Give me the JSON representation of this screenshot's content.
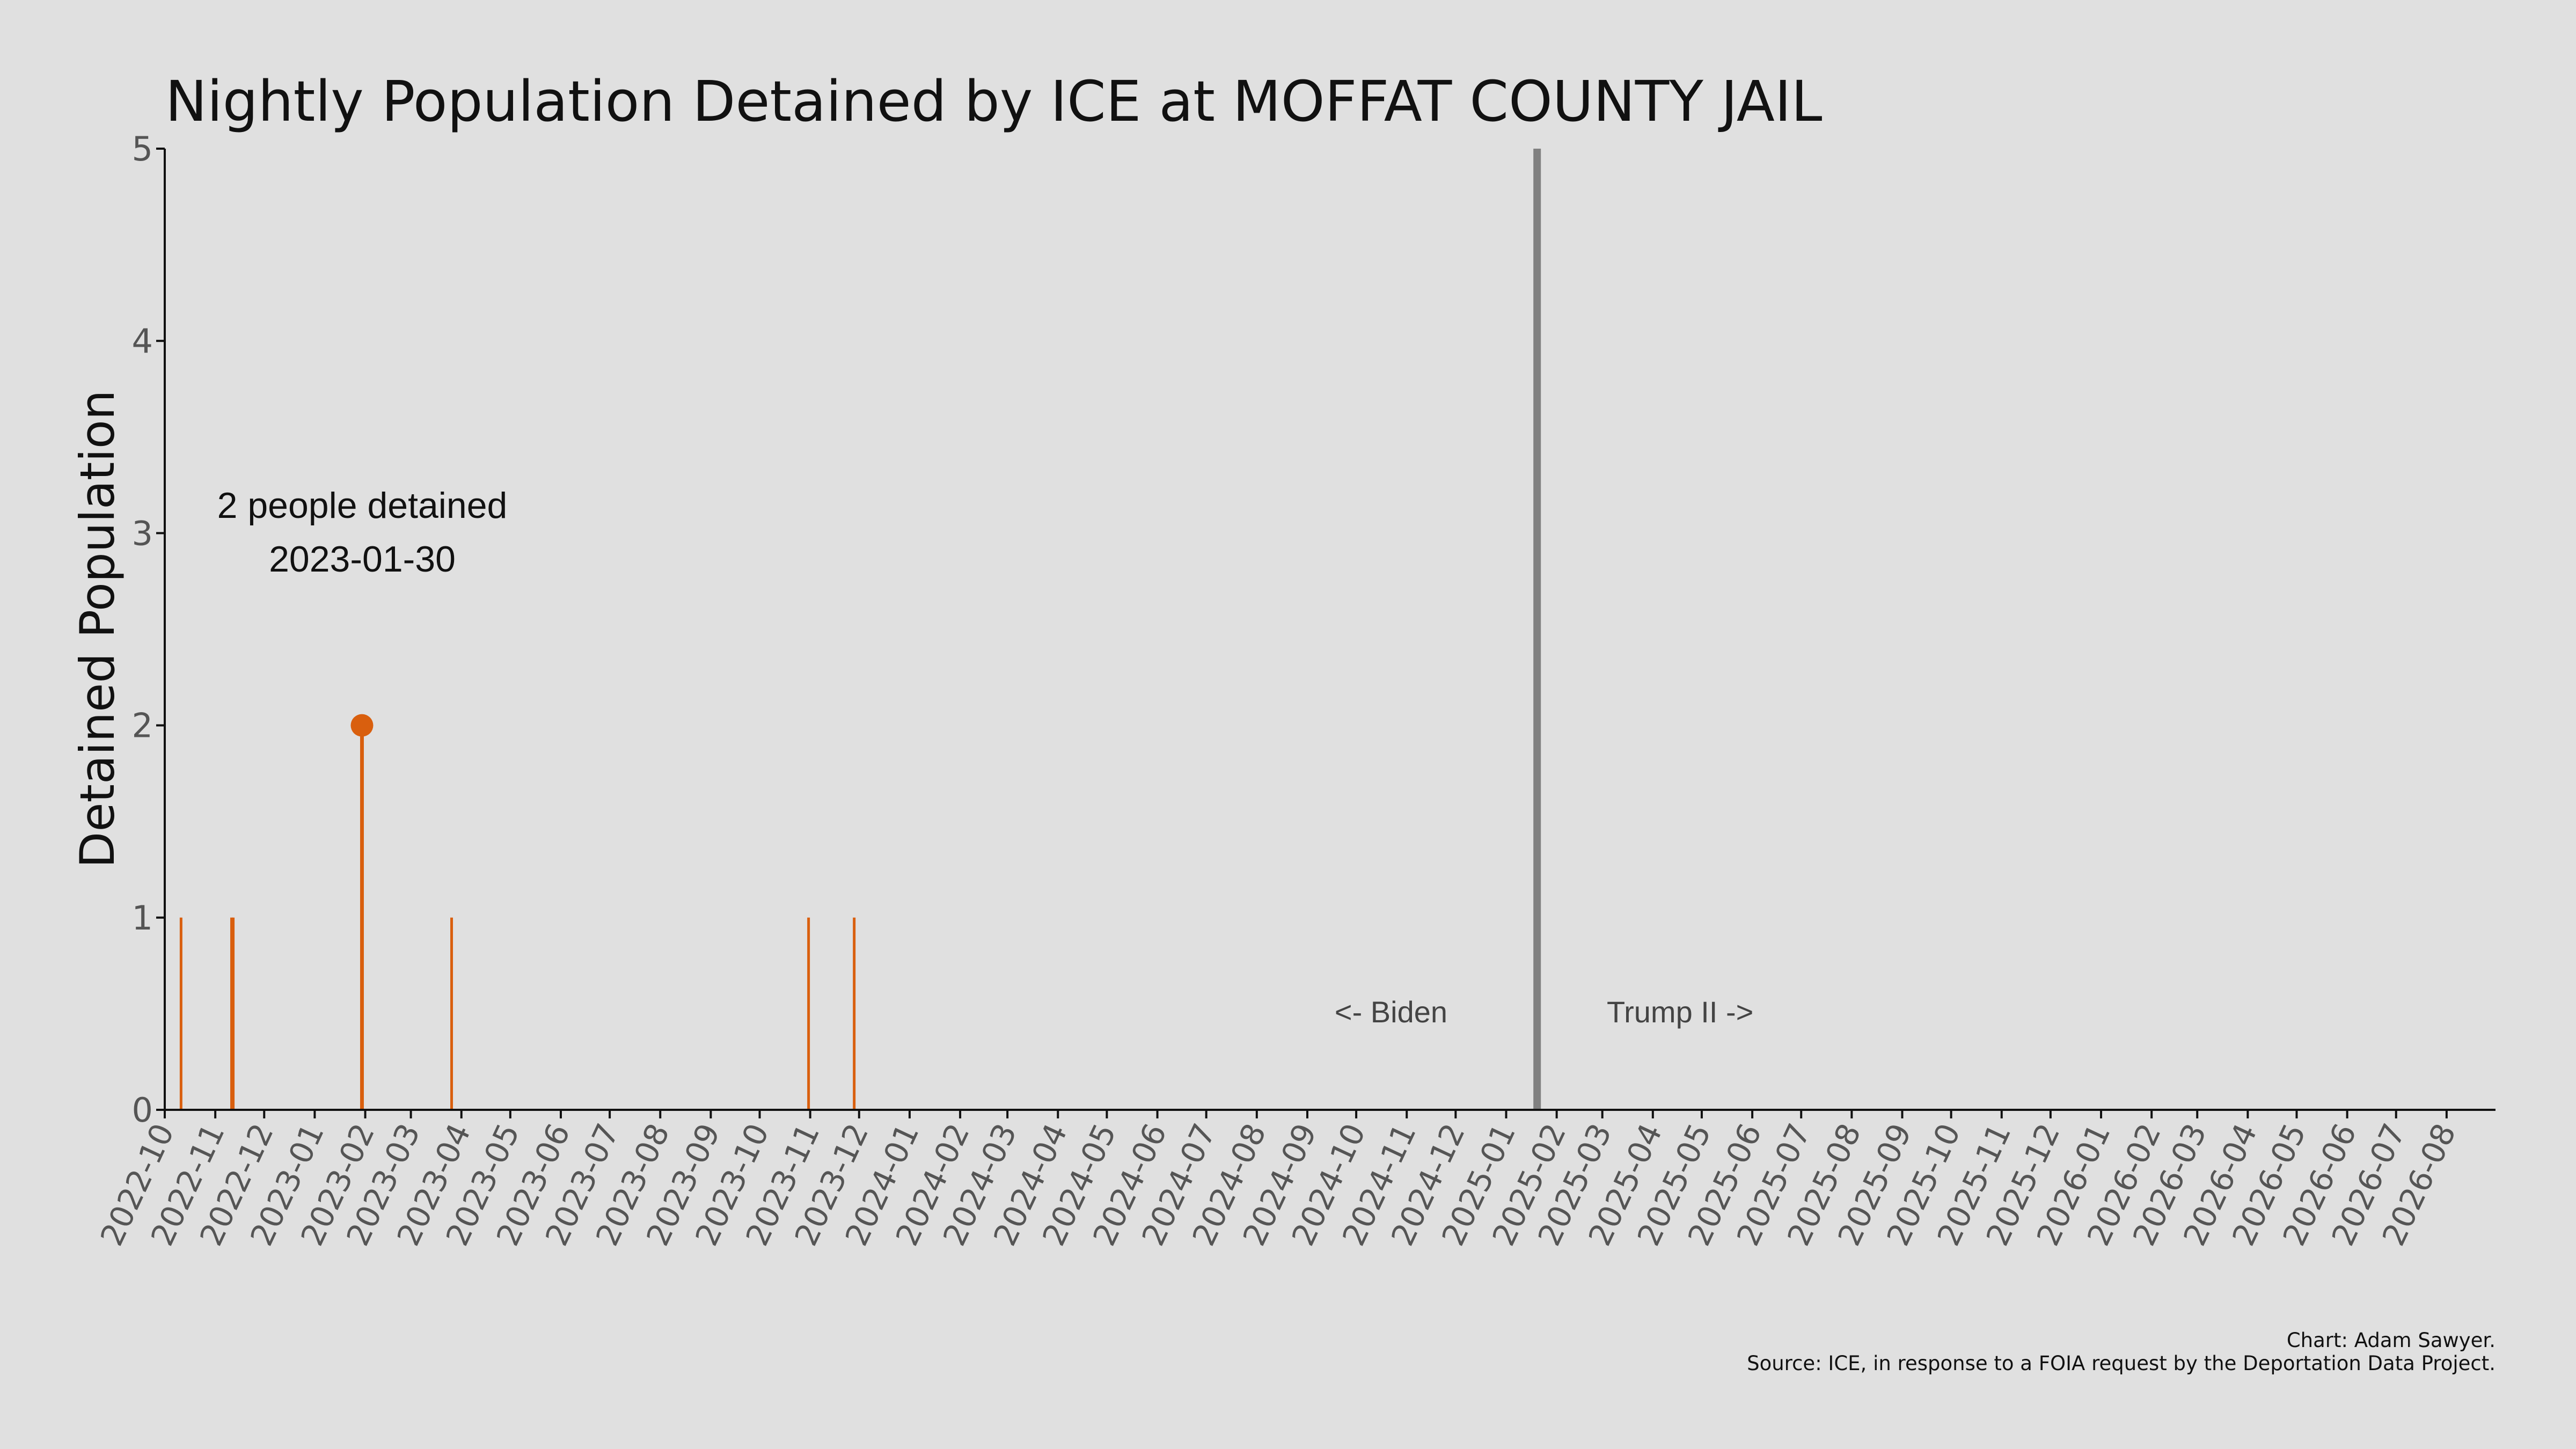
{
  "chart_data": {
    "type": "bar",
    "title": "Nightly Population Detained by ICE at MOFFAT COUNTY JAIL",
    "ylabel": "Detained Population",
    "xlabel": "",
    "ylim": [
      0,
      5
    ],
    "yticks": [
      0,
      1,
      2,
      3,
      4,
      5
    ],
    "xlim": [
      "2022-10-01",
      "2026-08-31"
    ],
    "xtick_labels": [
      "2022-10",
      "2022-11",
      "2022-12",
      "2023-01",
      "2023-02",
      "2023-03",
      "2023-04",
      "2023-05",
      "2023-06",
      "2023-07",
      "2023-08",
      "2023-09",
      "2023-10",
      "2023-11",
      "2023-12",
      "2024-01",
      "2024-02",
      "2024-03",
      "2024-04",
      "2024-05",
      "2024-06",
      "2024-07",
      "2024-08",
      "2024-09",
      "2024-10",
      "2024-11",
      "2024-12",
      "2025-01",
      "2025-02",
      "2025-03",
      "2025-04",
      "2025-05",
      "2025-06",
      "2025-07",
      "2025-08",
      "2025-09",
      "2025-10",
      "2025-11",
      "2025-12",
      "2026-01",
      "2026-02",
      "2026-03",
      "2026-04",
      "2026-05",
      "2026-06",
      "2026-07",
      "2026-08"
    ],
    "grid": false,
    "bar_color": "#d95f0e",
    "series": [
      {
        "x": [
          "2022-10-11",
          "2022-11-11",
          "2022-11-12",
          "2023-01-30",
          "2023-03-26",
          "2023-10-31",
          "2023-11-28"
        ],
        "values": [
          1,
          1,
          1,
          2,
          1,
          1,
          1
        ]
      }
    ],
    "highlight": {
      "x": "2023-01-30",
      "value": 2,
      "label_line1": "2 people detained",
      "label_line2": "2023-01-30",
      "color": "#d95f0e"
    },
    "divider": {
      "x": "2025-01-20",
      "color": "#808080",
      "left_label": "<- Biden",
      "right_label": "Trump II ->"
    }
  },
  "credit": {
    "line1": "Chart: Adam Sawyer.",
    "line2": "Source: ICE, in response to a FOIA request by the Deportation Data Project."
  }
}
